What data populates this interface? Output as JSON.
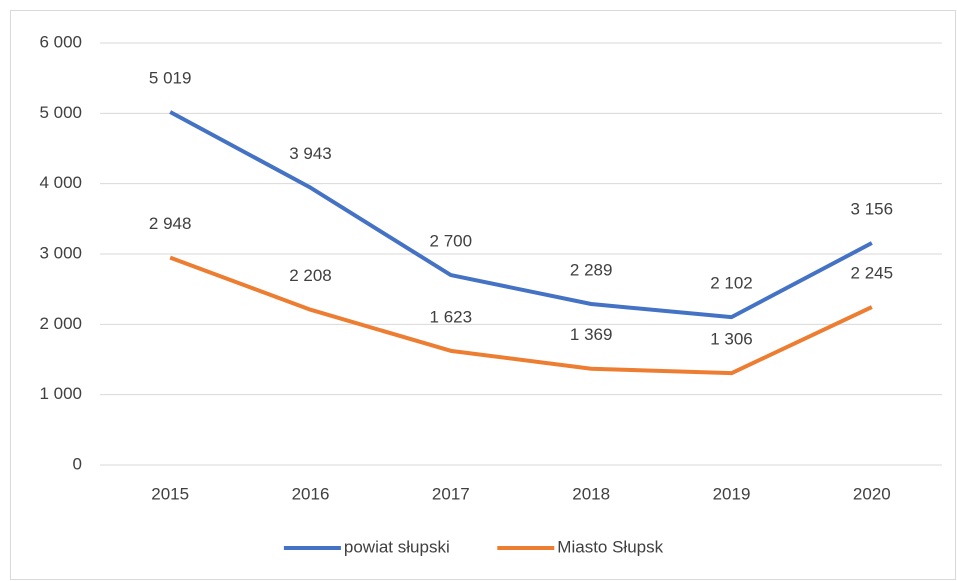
{
  "chart_data": {
    "type": "line",
    "categories": [
      "2015",
      "2016",
      "2017",
      "2018",
      "2019",
      "2020"
    ],
    "series": [
      {
        "name": "powiat słupski",
        "color": "#4472c4",
        "values": [
          5019,
          3943,
          2700,
          2289,
          2102,
          3156
        ],
        "value_labels": [
          "5 019",
          "3 943",
          "2 700",
          "2 289",
          "2 102",
          "3 156"
        ]
      },
      {
        "name": "Miasto Słupsk",
        "color": "#ed7d31",
        "values": [
          2948,
          2208,
          1623,
          1369,
          1306,
          2245
        ],
        "value_labels": [
          "2 948",
          "2 208",
          "1 623",
          "1 369",
          "1 306",
          "2 245"
        ]
      }
    ],
    "ylim": [
      0,
      6000
    ],
    "yticks": [
      {
        "value": 0,
        "label": "0"
      },
      {
        "value": 1000,
        "label": "1 000"
      },
      {
        "value": 2000,
        "label": "2 000"
      },
      {
        "value": 3000,
        "label": "3 000"
      },
      {
        "value": 4000,
        "label": "4 000"
      },
      {
        "value": 5000,
        "label": "5 000"
      },
      {
        "value": 6000,
        "label": "6 000"
      }
    ],
    "grid": true,
    "legend": "bottom"
  }
}
